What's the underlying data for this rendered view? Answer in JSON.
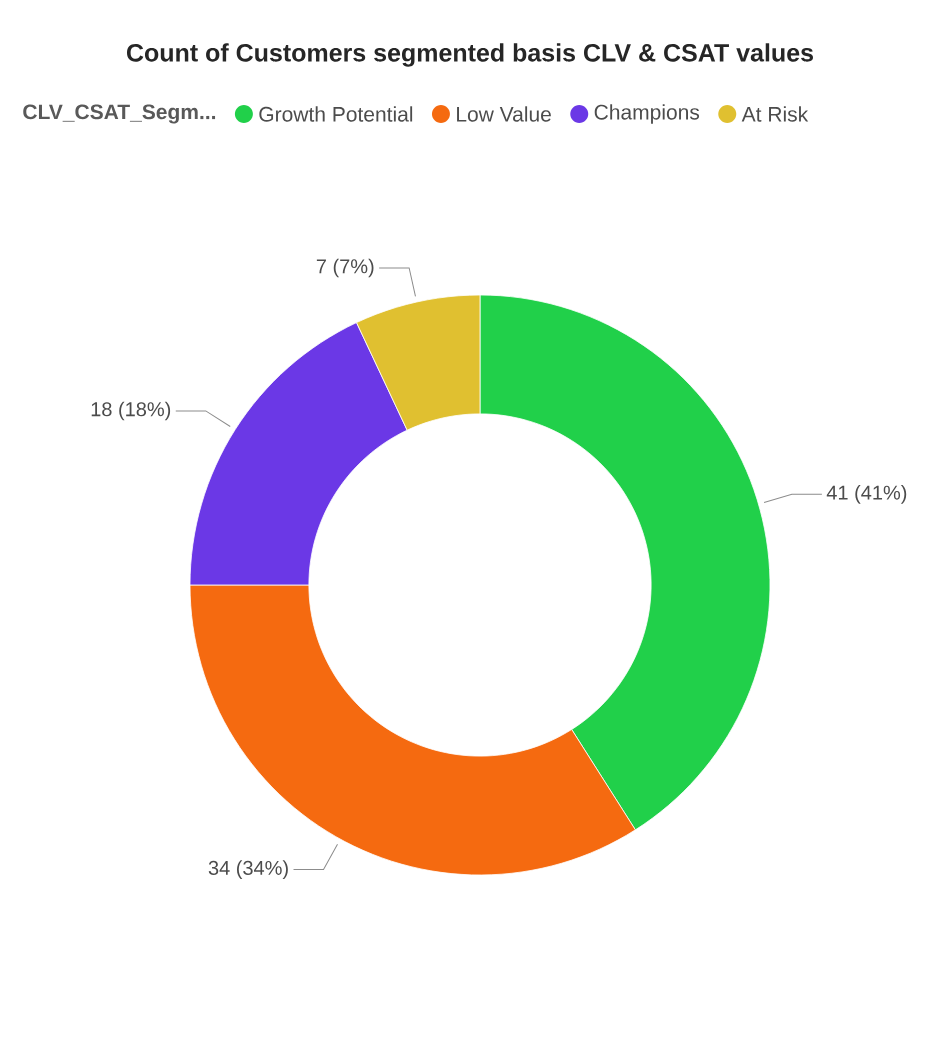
{
  "chart_data": {
    "type": "donut",
    "title": "Count of Customers segmented basis CLV & CSAT values",
    "legend_title": "CLV_CSAT_Segm...",
    "legend": "top",
    "categories": [
      "Growth Potential",
      "Low Value",
      "Champions",
      "At Risk"
    ],
    "values": [
      41,
      34,
      18,
      7
    ],
    "colors": [
      "#21d04a",
      "#f56a10",
      "#6b38e6",
      "#e0c030"
    ],
    "value_labels": [
      "41 (41%)",
      "34 (34%)",
      "18 (18%)",
      "7 (7%)"
    ]
  }
}
